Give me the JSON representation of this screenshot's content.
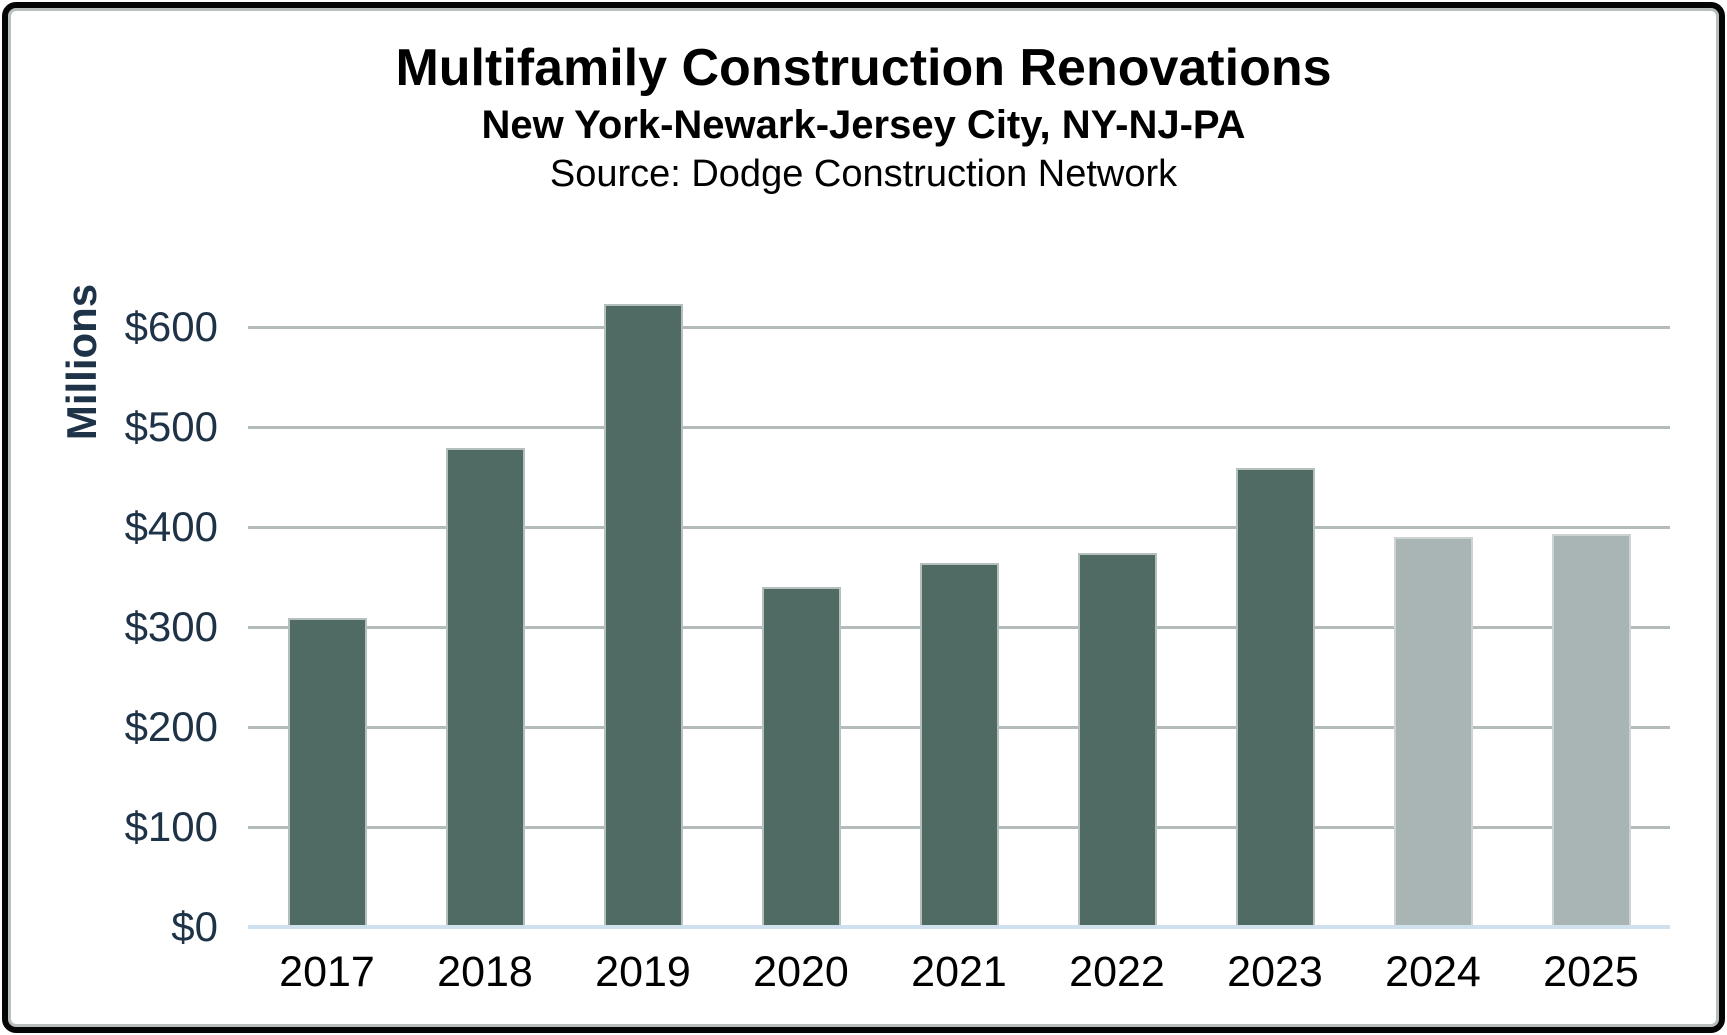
{
  "header": {
    "title": "Multifamily Construction Renovations",
    "subtitle": "New York-Newark-Jersey City, NY-NJ-PA",
    "source": "Source: Dodge Construction Network"
  },
  "chart_data": {
    "type": "bar",
    "title": "Multifamily Construction Renovations",
    "subtitle": "New York-Newark-Jersey City, NY-NJ-PA",
    "annotation": "Source: Dodge Construction Network",
    "xlabel": "",
    "ylabel": "Millions",
    "unit": "USD millions",
    "categories": [
      "2017",
      "2018",
      "2019",
      "2020",
      "2021",
      "2022",
      "2023",
      "2024",
      "2025"
    ],
    "values": [
      309,
      479,
      623,
      340,
      364,
      374,
      459,
      390,
      393
    ],
    "bar_styles": [
      "actual",
      "actual",
      "actual",
      "actual",
      "actual",
      "actual",
      "actual",
      "forecast",
      "forecast"
    ],
    "styles": {
      "actual": {
        "fill": "#506a64",
        "border": "#b5bfbd"
      },
      "forecast": {
        "fill": "#a9b5b4",
        "border": "#ccd3d2"
      }
    },
    "y_ticks": [
      {
        "value": 0,
        "label": "$0"
      },
      {
        "value": 100,
        "label": "$100"
      },
      {
        "value": 200,
        "label": "$200"
      },
      {
        "value": 300,
        "label": "$300"
      },
      {
        "value": 400,
        "label": "$400"
      },
      {
        "value": 500,
        "label": "$500"
      },
      {
        "value": 600,
        "label": "$600"
      }
    ],
    "ylim": [
      0,
      650
    ],
    "grid": true,
    "legend": "none",
    "colors": {
      "gridline": "#b3bcbb",
      "baseline": "#cfe0ef",
      "axis_text": "#1e3348",
      "category_text": "#000000",
      "title_text": "#000000"
    }
  }
}
